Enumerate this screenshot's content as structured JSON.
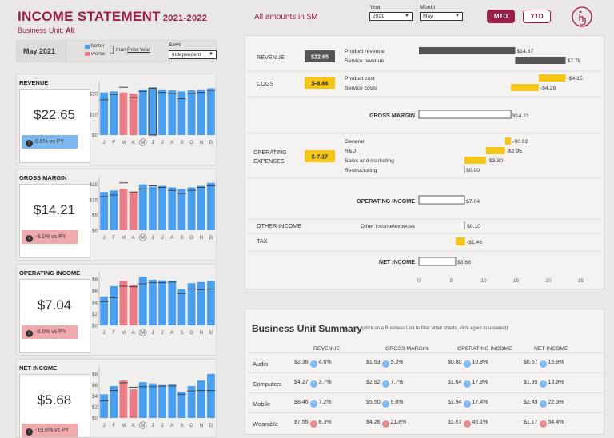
{
  "header": {
    "title": "INCOME STATEMENT",
    "period": "2021-2022",
    "business_unit_label": "Business Unit:",
    "business_unit_value": "All",
    "amounts_note": "All amounts in $M",
    "year_label": "Year",
    "year_value": "2021",
    "month_label": "Month",
    "month_value": "May",
    "mtd_label": "MTD",
    "ytd_label": "YTD",
    "info_icon": "info-hand-icon"
  },
  "left_header": {
    "date": "May 2021",
    "legend_better": "better",
    "legend_worse": "worse",
    "legend_than": "than",
    "legend_prior": "Prior Year",
    "axes_label": "Axes",
    "axes_value": "Independent",
    "better_color": "#4a9ff0",
    "worse_color": "#e97c84"
  },
  "months": [
    "J",
    "F",
    "M",
    "A",
    "M",
    "J",
    "J",
    "A",
    "S",
    "O",
    "N",
    "D"
  ],
  "kpis": [
    {
      "title": "REVENUE",
      "value": "$22.65",
      "badge": "0.6% vs PY",
      "direction": "up",
      "chart_data": {
        "type": "bar",
        "categories": [
          "J",
          "F",
          "M",
          "A",
          "M",
          "J",
          "J",
          "A",
          "S",
          "O",
          "N",
          "D"
        ],
        "values": [
          20.5,
          21,
          20.5,
          20,
          22,
          22.65,
          22,
          21.5,
          21,
          21.5,
          22,
          22.5
        ],
        "prior_year": [
          17,
          19.5,
          23,
          18,
          21,
          22.5,
          20.5,
          20,
          17.5,
          20,
          20.5,
          21.5
        ],
        "better": [
          true,
          true,
          false,
          false,
          true,
          true,
          true,
          true,
          true,
          true,
          true,
          true
        ],
        "ytick_labels": [
          "$20",
          "$10",
          "$0"
        ],
        "ylim": [
          0,
          25
        ]
      }
    },
    {
      "title": "GROSS MARGIN",
      "value": "$14.21",
      "badge": "-3.1% vs PY",
      "direction": "down",
      "chart_data": {
        "type": "bar",
        "categories": [
          "J",
          "F",
          "M",
          "A",
          "M",
          "J",
          "J",
          "A",
          "S",
          "O",
          "N",
          "D"
        ],
        "values": [
          12.5,
          13,
          13.5,
          12.5,
          15,
          14.21,
          14.5,
          14,
          13.5,
          14,
          14.5,
          15.5
        ],
        "prior_year": [
          11,
          11.5,
          15.5,
          12.5,
          13.5,
          14.5,
          14,
          13,
          12,
          13,
          14,
          14.5
        ],
        "better": [
          true,
          true,
          false,
          false,
          true,
          true,
          true,
          true,
          true,
          true,
          true,
          true
        ],
        "ytick_labels": [
          "$15",
          "$10",
          "$5",
          "$0"
        ],
        "ylim": [
          0,
          17
        ]
      }
    },
    {
      "title": "OPERATING INCOME",
      "value": "$7.04",
      "badge": "-8.6% vs PY",
      "direction": "down",
      "chart_data": {
        "type": "bar",
        "categories": [
          "J",
          "F",
          "M",
          "A",
          "M",
          "J",
          "J",
          "A",
          "S",
          "O",
          "N",
          "D"
        ],
        "values": [
          5,
          6.8,
          7.7,
          7,
          8.4,
          7.9,
          7.8,
          7.7,
          6.3,
          7.3,
          7.5,
          7.7
        ],
        "prior_year": [
          4.1,
          4.8,
          6.8,
          6.7,
          7.2,
          7.4,
          7.4,
          7.5,
          5.5,
          6.3,
          6.2,
          6.3
        ],
        "better": [
          true,
          true,
          false,
          false,
          true,
          true,
          true,
          true,
          true,
          true,
          true,
          true
        ],
        "ytick_labels": [
          "$8",
          "$6",
          "$4",
          "$2",
          "$0"
        ],
        "ylim": [
          0,
          9
        ]
      }
    },
    {
      "title": "NET INCOME",
      "value": "$5.68",
      "badge": "-19.8% vs PY",
      "direction": "down",
      "chart_data": {
        "type": "bar",
        "categories": [
          "J",
          "F",
          "M",
          "A",
          "M",
          "J",
          "J",
          "A",
          "S",
          "O",
          "N",
          "D"
        ],
        "values": [
          4.3,
          5.8,
          6.8,
          5.2,
          6.5,
          6.3,
          6,
          6.1,
          4.8,
          5.8,
          6.8,
          8
        ],
        "prior_year": [
          3.1,
          5,
          6.4,
          5.6,
          5.7,
          5.7,
          5.8,
          5.8,
          4.3,
          4.9,
          5,
          5
        ],
        "better": [
          true,
          true,
          false,
          false,
          true,
          true,
          true,
          true,
          true,
          true,
          true,
          true
        ],
        "ytick_labels": [
          "$8",
          "$6",
          "$4",
          "$2",
          "$0"
        ],
        "ylim": [
          0,
          9
        ]
      }
    }
  ],
  "statement": {
    "axis_ticks": [
      "0",
      "5",
      "10",
      "15",
      "20",
      "25"
    ],
    "sections": [
      {
        "label": "REVENUE",
        "total": "$22.65",
        "total_color": "#555555",
        "rows": [
          {
            "name": "Product revenue",
            "value": 14.87,
            "text": "$14.87"
          },
          {
            "name": "Service revenue",
            "value": 7.78,
            "text": "$7.78"
          }
        ]
      },
      {
        "label": "COGS",
        "total": "$-8.44",
        "total_color": "#f5c518",
        "rows": [
          {
            "name": "Product cost",
            "value": -4.15,
            "text": "-$4.15"
          },
          {
            "name": "Service costs",
            "value": -4.29,
            "text": "-$4.29"
          }
        ]
      },
      {
        "label": "GROSS MARGIN",
        "value": 14.21,
        "text": "$14.21"
      },
      {
        "label": "OPERATING EXPENSES",
        "total": "$-7.17",
        "total_color": "#f5c518",
        "rows": [
          {
            "name": "General",
            "value": -0.92,
            "text": "-$0.92"
          },
          {
            "name": "R&D",
            "value": -2.95,
            "text": "-$2.95"
          },
          {
            "name": "Sales and marketing",
            "value": -3.3,
            "text": "-$3.30"
          },
          {
            "name": "Restructuring",
            "value": 0.0,
            "text": "$0.00"
          }
        ]
      },
      {
        "label": "OPERATING INCOME",
        "value": 7.04,
        "text": "$7.04"
      },
      {
        "label": "OTHER INCOME",
        "sub": "Other income/expense",
        "value": 0.1,
        "text": "$0.10"
      },
      {
        "label": "TAX",
        "value": -1.46,
        "text": "-$1.46"
      },
      {
        "label": "NET INCOME",
        "value": 5.68,
        "text": "$5.68"
      }
    ]
  },
  "summary": {
    "title": "Business Unit Summary",
    "hint": "(click on a Business Unit to filter other charts, click again to unselect)",
    "columns": [
      "REVENUE",
      "GROSS MARGIN",
      "OPERATING INCOME",
      "NET INCOME"
    ],
    "rows": [
      {
        "unit": "Audio",
        "cells": [
          {
            "v": "$2.36",
            "p": "4.6%",
            "d": "up"
          },
          {
            "v": "$1.53",
            "p": "5.3%",
            "d": "up"
          },
          {
            "v": "$0.80",
            "p": "10.9%",
            "d": "up"
          },
          {
            "v": "$0.67",
            "p": "15.9%",
            "d": "up"
          }
        ]
      },
      {
        "unit": "Computers",
        "cells": [
          {
            "v": "$4.27",
            "p": "3.7%",
            "d": "up"
          },
          {
            "v": "$2.92",
            "p": "7.7%",
            "d": "up"
          },
          {
            "v": "$1.64",
            "p": "17.9%",
            "d": "up"
          },
          {
            "v": "$1.35",
            "p": "13.9%",
            "d": "up"
          }
        ]
      },
      {
        "unit": "Mobile",
        "cells": [
          {
            "v": "$8.46",
            "p": "7.2%",
            "d": "up"
          },
          {
            "v": "$5.50",
            "p": "9.0%",
            "d": "up"
          },
          {
            "v": "$2.94",
            "p": "17.4%",
            "d": "up"
          },
          {
            "v": "$2.49",
            "p": "22.3%",
            "d": "up"
          }
        ]
      },
      {
        "unit": "Wearable",
        "cells": [
          {
            "v": "$7.56",
            "p": "8.3%",
            "d": "down"
          },
          {
            "v": "$4.26",
            "p": "21.8%",
            "d": "down"
          },
          {
            "v": "$1.67",
            "p": "46.1%",
            "d": "down"
          },
          {
            "v": "$1.17",
            "p": "54.4%",
            "d": "down"
          }
        ]
      }
    ]
  }
}
